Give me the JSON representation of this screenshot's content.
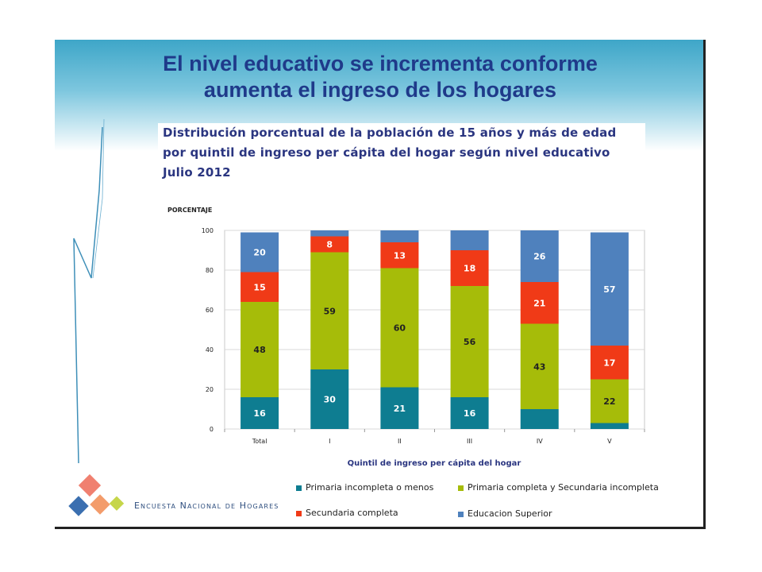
{
  "slide": {
    "title_line1": "El nivel educativo se incrementa conforme",
    "title_line2": "aumenta el ingreso de los hogares",
    "subtitle_line1": "Distribución porcentual de la población de 15 años y más de edad",
    "subtitle_line2": "por quintil de ingreso per cápita del hogar según nivel educativo",
    "subtitle_line3": "Julio 2012",
    "logo_text": "Encuesta Nacional de Hogares",
    "logo_colors": [
      "#e8604c",
      "#f39c6b",
      "#3b6fb0",
      "#c6d64a"
    ]
  },
  "chart_data": {
    "type": "bar",
    "stacked": true,
    "ylabel": "PORCENTAJE",
    "xlabel": "Quintil de ingreso per cápita del hogar",
    "ylim": [
      0,
      100
    ],
    "yticks": [
      "0",
      "20",
      "40",
      "60",
      "80",
      "100"
    ],
    "categories": [
      "Total",
      "I",
      "II",
      "III",
      "IV",
      "V"
    ],
    "grid": true,
    "legend_position": "bottom",
    "series": [
      {
        "name": "Primaria incompleta o menos",
        "color": "#0e7d91",
        "values": [
          16,
          30,
          21,
          16,
          10,
          3
        ],
        "labels": [
          "16",
          "30",
          "21",
          "16",
          "",
          ""
        ]
      },
      {
        "name": "Primaria completa y Secundaria incompleta",
        "color": "#a6bc09",
        "values": [
          48,
          59,
          60,
          56,
          43,
          22
        ],
        "labels": [
          "48",
          "59",
          "60",
          "56",
          "43",
          "22"
        ]
      },
      {
        "name": "Secundaria completa",
        "color": "#f03a17",
        "values": [
          15,
          8,
          13,
          18,
          21,
          17
        ],
        "labels": [
          "15",
          "8",
          "13",
          "18",
          "21",
          "17"
        ]
      },
      {
        "name": "Educacion Superior",
        "color": "#4f81bd",
        "values": [
          20,
          3,
          6,
          10,
          26,
          57
        ],
        "labels": [
          "20",
          "",
          "",
          "",
          "26",
          "57"
        ]
      }
    ]
  }
}
